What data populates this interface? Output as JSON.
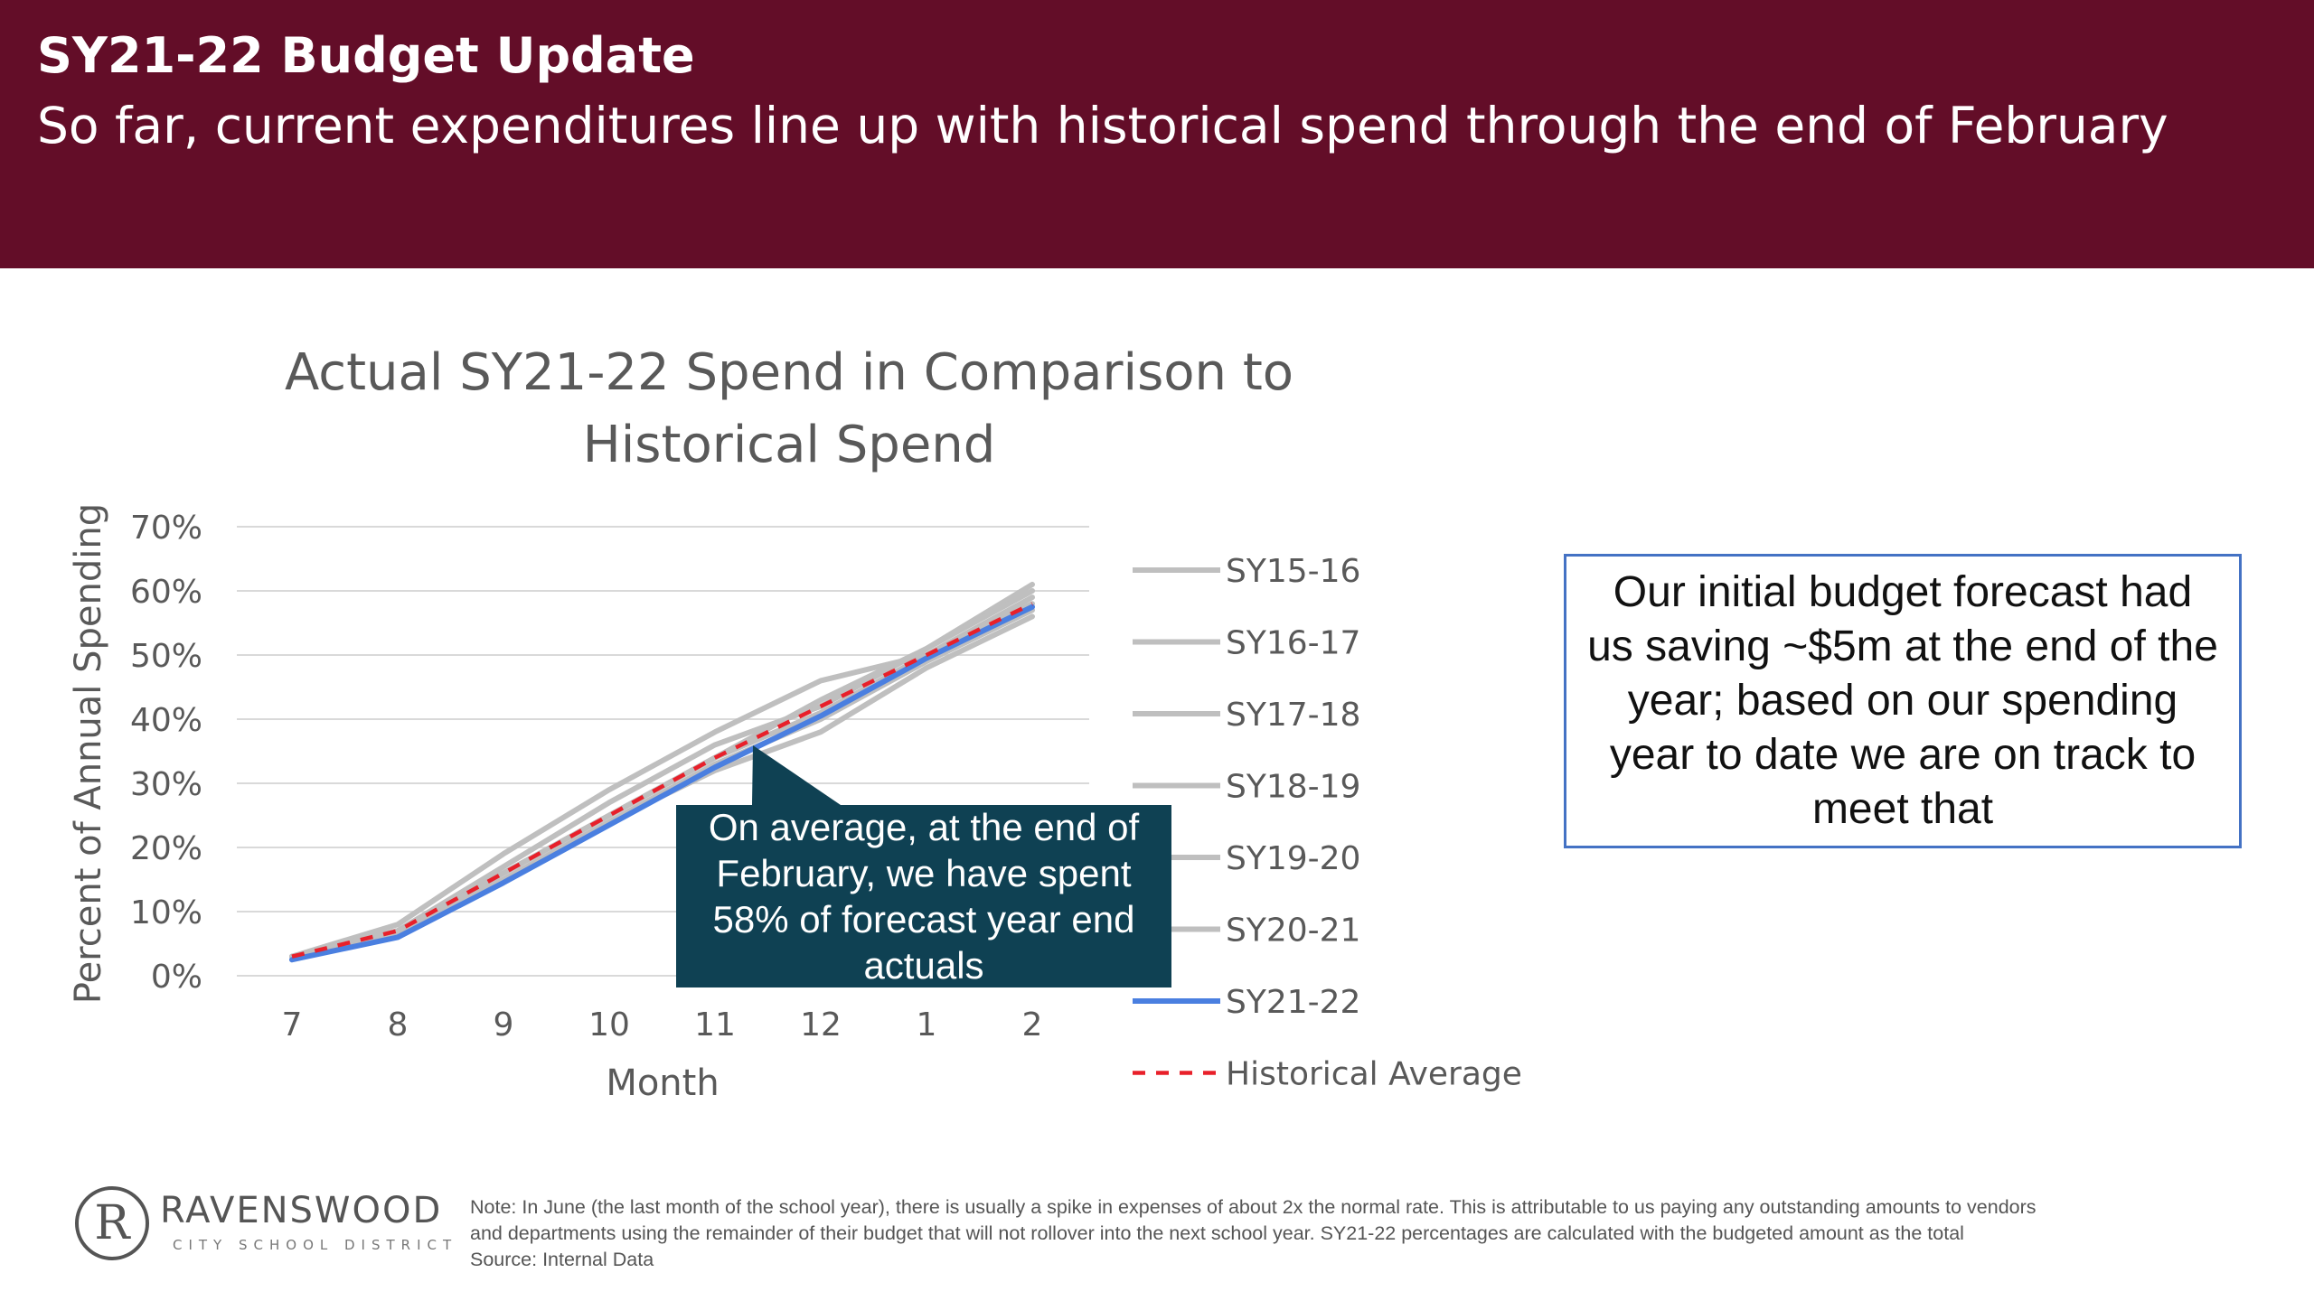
{
  "header": {
    "title": "SY21-22 Budget Update",
    "subtitle": "So far, current expenditures line up with historical spend through the end of February"
  },
  "chart_data": {
    "type": "line",
    "title_lines": [
      "Actual SY21-22 Spend in Comparison to",
      "Historical Spend"
    ],
    "xlabel": "Month",
    "ylabel": "Percent of Annual Spending",
    "categories": [
      "7",
      "8",
      "9",
      "10",
      "11",
      "12",
      "1",
      "2"
    ],
    "yticks": [
      "0%",
      "10%",
      "20%",
      "30%",
      "40%",
      "50%",
      "60%",
      "70%"
    ],
    "ylim": [
      0,
      70
    ],
    "grid": true,
    "legend_position": "right",
    "series": [
      {
        "name": "SY15-16",
        "color": "#bfbfbf",
        "style": "solid",
        "values": [
          3,
          8,
          19,
          29,
          38,
          46,
          50,
          59
        ]
      },
      {
        "name": "SY16-17",
        "color": "#bfbfbf",
        "style": "solid",
        "values": [
          3,
          7,
          17,
          27,
          36,
          42,
          51,
          61
        ]
      },
      {
        "name": "SY17-18",
        "color": "#bfbfbf",
        "style": "solid",
        "values": [
          3,
          7,
          15,
          24,
          32,
          38,
          48,
          56
        ]
      },
      {
        "name": "SY18-19",
        "color": "#bfbfbf",
        "style": "solid",
        "values": [
          3,
          7,
          16,
          25,
          34,
          41,
          50,
          58
        ]
      },
      {
        "name": "SY19-20",
        "color": "#bfbfbf",
        "style": "solid",
        "values": [
          2.5,
          6.5,
          15,
          24,
          33,
          40,
          49,
          57
        ]
      },
      {
        "name": "SY20-21",
        "color": "#bfbfbf",
        "style": "solid",
        "values": [
          3,
          7,
          16,
          25,
          34,
          43,
          51,
          60
        ]
      },
      {
        "name": "SY21-22",
        "color": "#4a7fe0",
        "style": "solid",
        "values": [
          2.5,
          6,
          14.5,
          23.5,
          32.5,
          40.5,
          49.5,
          57.5
        ]
      },
      {
        "name": "Historical Average",
        "color": "#e8202a",
        "style": "dashed",
        "values": [
          3,
          7,
          16,
          25,
          34,
          42,
          50,
          58
        ]
      }
    ]
  },
  "callouts": {
    "chart_note": "On average, at the end of February, we have spent 58% of forecast year end actuals",
    "forecast_note": "Our initial budget forecast had us saving ~$5m at the end of the year; based on our spending year to date we are on track to meet that"
  },
  "logo": {
    "letter": "R",
    "name": "RAVENSWOOD",
    "sub": "CITY SCHOOL DISTRICT"
  },
  "footnote": {
    "line1": "Note: In June (the last month of the school year), there is usually a spike in expenses of about 2x the normal rate. This is attributable to us paying any outstanding amounts to vendors",
    "line2": "and departments using the remainder of their budget that will not rollover into the next school year. SY21-22 percentages are calculated with the budgeted amount as the total",
    "line3": "Source: Internal Data"
  }
}
